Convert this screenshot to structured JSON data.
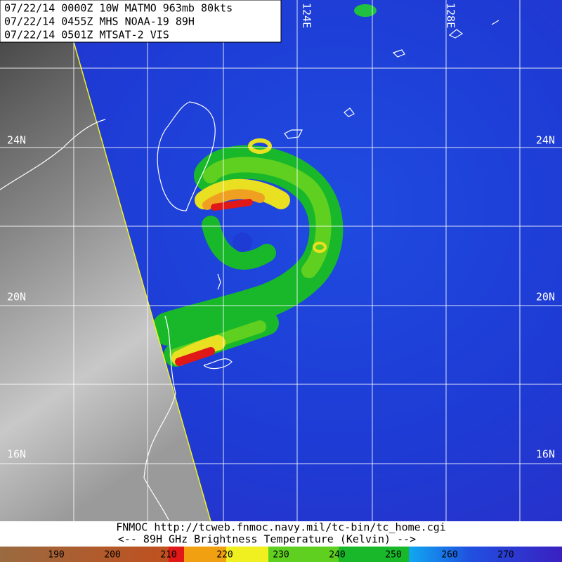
{
  "header": {
    "lines": [
      "07/22/14 0000Z  10W MATMO 963mb 80kts",
      "07/22/14 0455Z  MHS NOAA-19 89H",
      "07/22/14 0501Z  MTSAT-2 VIS"
    ]
  },
  "latitude_labels": [
    "24N",
    "20N",
    "16N"
  ],
  "longitude_labels": [
    "124E",
    "128E"
  ],
  "footer": {
    "credit": "FNMOC  http://tcweb.fnmoc.navy.mil/tc-bin/tc_home.cgi",
    "legend_title": "<--  89H GHz Brightness Temperature (Kelvin)  -->"
  },
  "colorbar": {
    "labels": [
      190,
      200,
      210,
      220,
      230,
      240,
      250,
      260,
      270
    ]
  }
}
